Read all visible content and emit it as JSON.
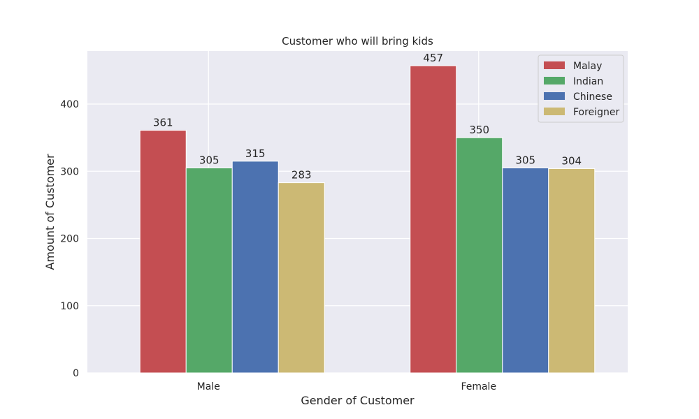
{
  "chart_data": {
    "type": "bar",
    "title": "Customer who will bring kids",
    "xlabel": "Gender of Customer",
    "ylabel": "Amount of Customer",
    "categories": [
      "Male",
      "Female"
    ],
    "series": [
      {
        "name": "Malay",
        "values": [
          361,
          457
        ],
        "color": "#C44E52"
      },
      {
        "name": "Indian",
        "values": [
          305,
          350
        ],
        "color": "#55A868"
      },
      {
        "name": "Chinese",
        "values": [
          315,
          305
        ],
        "color": "#4C72B0"
      },
      {
        "name": "Foreigner",
        "values": [
          283,
          304
        ],
        "color": "#CCB974"
      }
    ],
    "ylim": [
      0,
      479
    ],
    "yticks": [
      0,
      100,
      200,
      300,
      400
    ],
    "grid": true,
    "legend_position": "top-right",
    "background": "#EAEAF2"
  }
}
